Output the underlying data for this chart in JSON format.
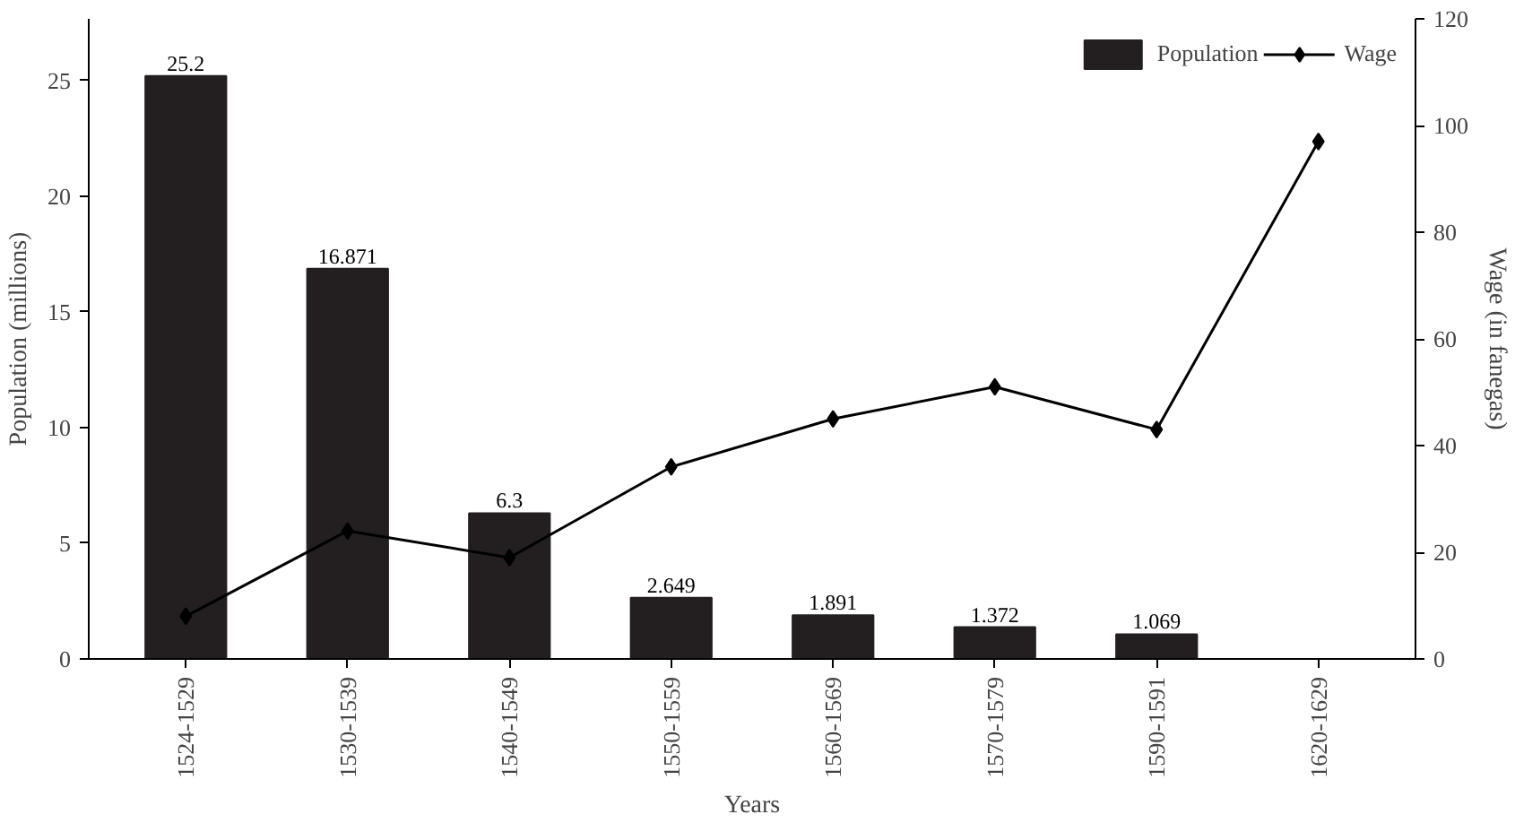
{
  "chart_data": {
    "type": "bar",
    "xlabel": "Years",
    "ylabel": "Population (millions)",
    "y2label": "Wage (in fanegas)",
    "categories": [
      "1524-1529",
      "1530-1539",
      "1540-1549",
      "1550-1559",
      "1560-1569",
      "1570-1579",
      "1590-1591",
      "1620-1629"
    ],
    "series": [
      {
        "name": "Population",
        "color": "#231f20",
        "values": [
          25.2,
          16.871,
          6.3,
          2.649,
          1.891,
          1.372,
          1.069,
          null
        ],
        "value_labels": [
          "25.2",
          "16.871",
          "6.3",
          "2.649",
          "1.891",
          "1.372",
          "1.069",
          null
        ]
      },
      {
        "name": "Wage",
        "type": "line",
        "axis": "y2",
        "color": "#000000",
        "marker": "diamond",
        "values": [
          8,
          24,
          19,
          36,
          45,
          51,
          43,
          97
        ]
      }
    ],
    "ylim": [
      0,
      27.67
    ],
    "yticks": [
      0,
      5,
      10,
      15,
      20,
      25
    ],
    "y2lim": [
      0,
      120
    ],
    "y2ticks": [
      0,
      20,
      40,
      60,
      80,
      100,
      120
    ],
    "grid": false,
    "legend": "top right"
  }
}
